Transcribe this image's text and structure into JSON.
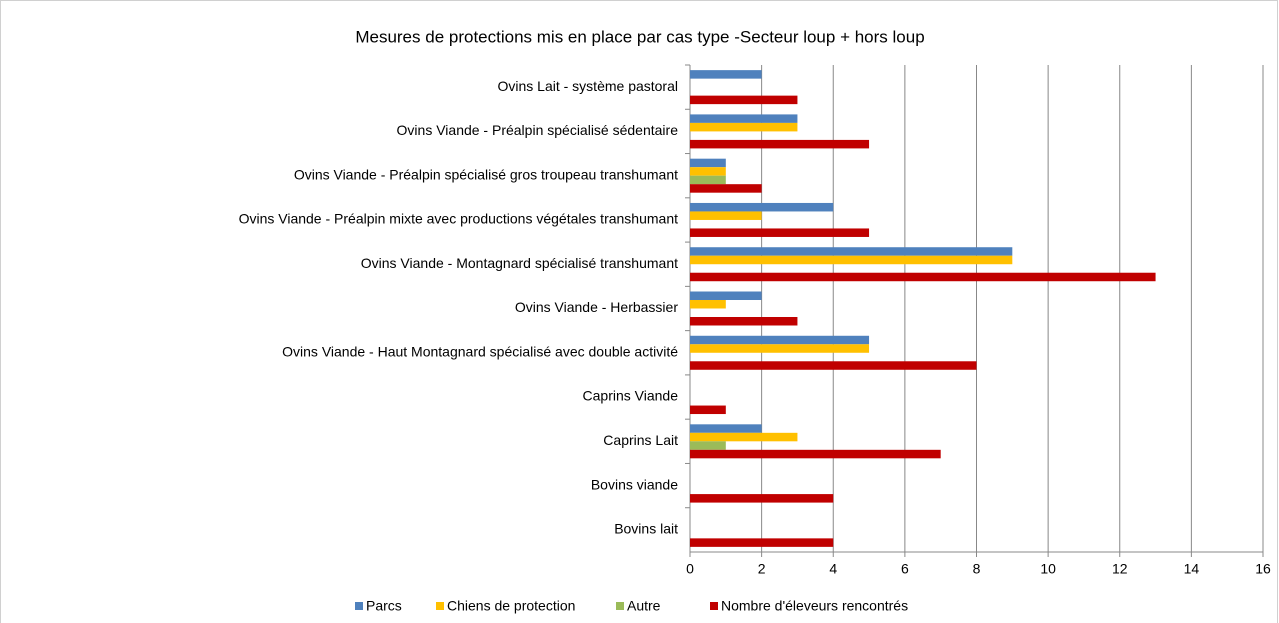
{
  "chart_data": {
    "type": "hbar",
    "title": "Mesures de protections mis en place par cas type -Secteur loup + hors loup",
    "categories": [
      "Ovins Lait - système pastoral",
      "Ovins Viande - Préalpin spécialisé sédentaire",
      "Ovins Viande - Préalpin spécialisé gros troupeau transhumant",
      "Ovins Viande - Préalpin mixte avec productions végétales transhumant",
      "Ovins Viande - Montagnard spécialisé transhumant",
      "Ovins Viande - Herbassier",
      "Ovins Viande - Haut Montagnard spécialisé avec double activité",
      "Caprins Viande",
      "Caprins Lait",
      "Bovins viande",
      "Bovins lait"
    ],
    "series": [
      {
        "name": "Parcs",
        "color": "#4f81bd",
        "values": [
          2,
          3,
          1,
          4,
          9,
          2,
          5,
          0,
          2,
          0,
          0
        ]
      },
      {
        "name": "Chiens de protection",
        "color": "#ffc000",
        "values": [
          0,
          3,
          1,
          2,
          9,
          1,
          5,
          0,
          3,
          0,
          0
        ]
      },
      {
        "name": "Autre",
        "color": "#9bbb59",
        "values": [
          0,
          0,
          1,
          0,
          0,
          0,
          0,
          0,
          1,
          0,
          0
        ]
      },
      {
        "name": "Nombre d'éleveurs rencontrés",
        "color": "#c00000",
        "values": [
          3,
          5,
          2,
          5,
          13,
          3,
          8,
          1,
          7,
          4,
          4
        ]
      }
    ],
    "xlim": [
      0,
      16
    ],
    "xticks": [
      0,
      2,
      4,
      6,
      8,
      10,
      12,
      14,
      16
    ],
    "grid": true,
    "legend": "bottom"
  }
}
